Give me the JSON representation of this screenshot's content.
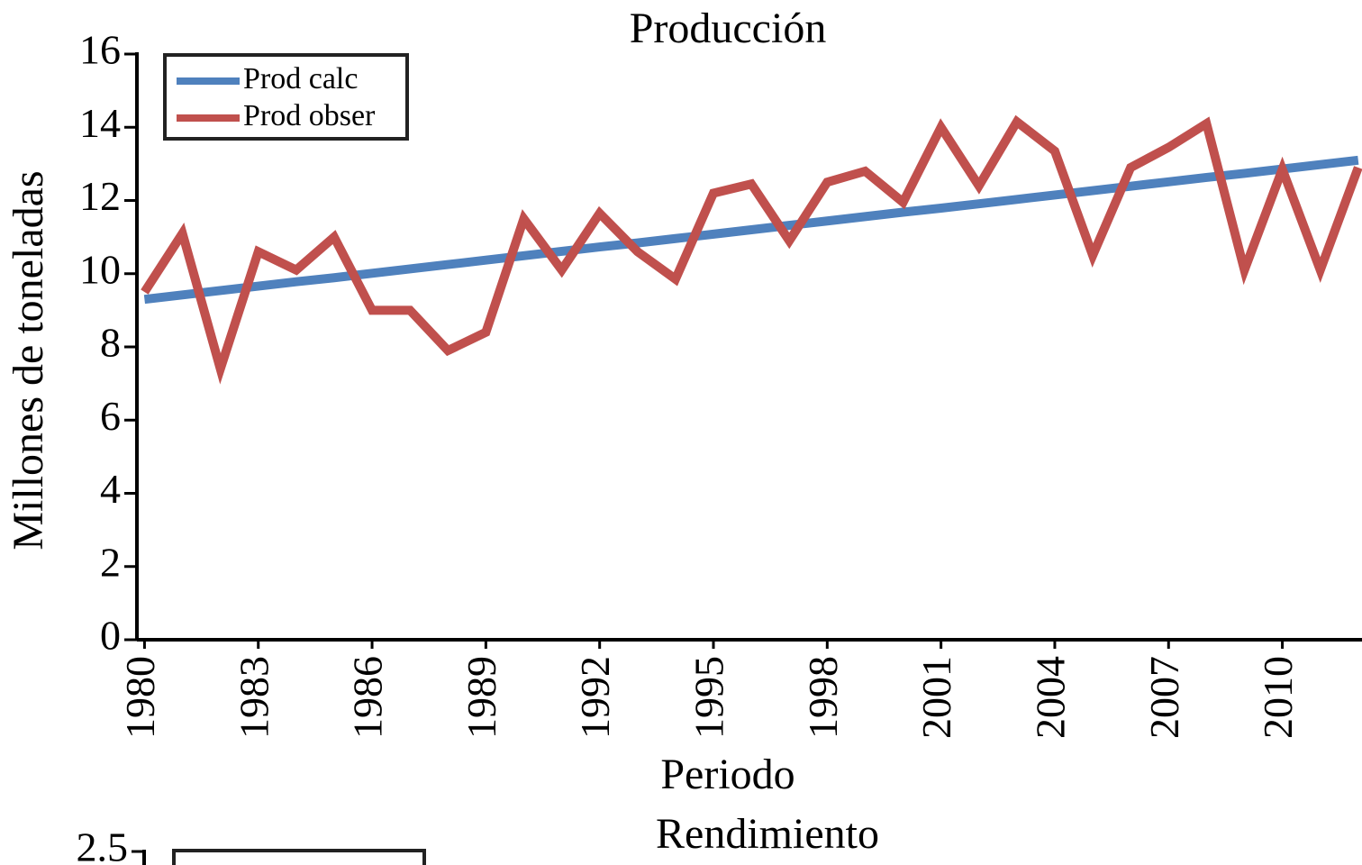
{
  "chart_data": [
    {
      "type": "line",
      "title": "Producción",
      "xlabel": "Periodo",
      "ylabel": "Millones de toneladas",
      "x": [
        1980,
        1981,
        1982,
        1983,
        1984,
        1985,
        1986,
        1987,
        1988,
        1989,
        1990,
        1991,
        1992,
        1993,
        1994,
        1995,
        1996,
        1997,
        1998,
        1999,
        2000,
        2001,
        2002,
        2003,
        2004,
        2005,
        2006,
        2007,
        2008,
        2009,
        2010,
        2011,
        2012
      ],
      "series": [
        {
          "name": "Prod calc",
          "color": "#4f81bd",
          "values": [
            9.3,
            9.42,
            9.54,
            9.66,
            9.78,
            9.89,
            10.01,
            10.13,
            10.25,
            10.37,
            10.49,
            10.61,
            10.73,
            10.84,
            10.96,
            11.08,
            11.2,
            11.32,
            11.44,
            11.56,
            11.68,
            11.79,
            11.91,
            12.03,
            12.15,
            12.27,
            12.39,
            12.51,
            12.63,
            12.74,
            12.86,
            12.98,
            13.1
          ]
        },
        {
          "name": "Prod obser",
          "color": "#c0504d",
          "values": [
            9.5,
            11.1,
            7.4,
            10.6,
            10.1,
            11.0,
            9.0,
            9.0,
            7.9,
            8.4,
            11.5,
            10.1,
            11.65,
            10.6,
            9.85,
            12.2,
            12.45,
            10.9,
            12.5,
            12.8,
            11.95,
            14.0,
            12.4,
            14.15,
            13.35,
            10.5,
            12.9,
            13.45,
            14.1,
            10.1,
            12.85,
            10.1,
            12.9
          ]
        }
      ],
      "xlim": [
        1979.8,
        2012.1
      ],
      "xticks": [
        1980,
        1983,
        1986,
        1989,
        1992,
        1995,
        1998,
        2001,
        2004,
        2007,
        2010
      ],
      "ylim": [
        0,
        16
      ],
      "yticks": [
        0,
        2,
        4,
        6,
        8,
        10,
        12,
        14,
        16
      ],
      "legend": "upper left"
    },
    {
      "type": "line",
      "title": "Rendimiento",
      "ylim": [
        0,
        2.5
      ],
      "yticks": [
        2.5
      ]
    }
  ]
}
